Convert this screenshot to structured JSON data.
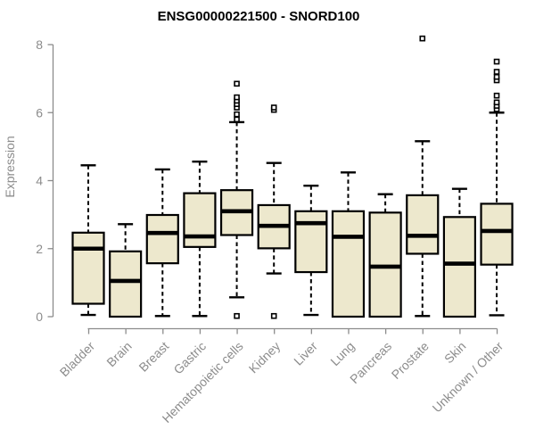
{
  "chart_data": {
    "type": "boxplot",
    "title": "ENSG00000221500 - SNORD100",
    "xlabel": "",
    "ylabel": "Expression",
    "ylim": [
      0,
      8
    ],
    "yticks": [
      0,
      2,
      4,
      6,
      8
    ],
    "grid": false,
    "legend": "none",
    "box_fill_color": "#EDE8CD",
    "box_stroke_color": "#000000",
    "axis_color": "#8C8C8C",
    "categories": [
      "Bladder",
      "Brain",
      "Breast",
      "Gastric",
      "Hematopoietic cells",
      "Kidney",
      "Liver",
      "Lung",
      "Pancreas",
      "Prostate",
      "Skin",
      "Unknown / Other"
    ],
    "series": [
      {
        "category": "Bladder",
        "whisker_low": 0.05,
        "q1": 0.38,
        "median": 2.0,
        "q3": 2.47,
        "whisker_high": 4.45,
        "outliers": []
      },
      {
        "category": "Brain",
        "whisker_low": 0.0,
        "q1": 0.0,
        "median": 1.05,
        "q3": 1.92,
        "whisker_high": 2.72,
        "outliers": []
      },
      {
        "category": "Breast",
        "whisker_low": 0.02,
        "q1": 1.57,
        "median": 2.46,
        "q3": 2.99,
        "whisker_high": 4.33,
        "outliers": []
      },
      {
        "category": "Gastric",
        "whisker_low": 0.02,
        "q1": 2.05,
        "median": 2.36,
        "q3": 3.63,
        "whisker_high": 4.56,
        "outliers": []
      },
      {
        "category": "Hematopoietic cells",
        "whisker_low": 0.57,
        "q1": 2.4,
        "median": 3.1,
        "q3": 3.72,
        "whisker_high": 5.72,
        "outliers": [
          0.02,
          5.8,
          5.95,
          6.15,
          6.25,
          6.35,
          6.45,
          6.85
        ]
      },
      {
        "category": "Kidney",
        "whisker_low": 1.27,
        "q1": 2.01,
        "median": 2.67,
        "q3": 3.28,
        "whisker_high": 4.52,
        "outliers": [
          0.02,
          6.08,
          6.15
        ]
      },
      {
        "category": "Liver",
        "whisker_low": 0.05,
        "q1": 1.31,
        "median": 2.75,
        "q3": 3.1,
        "whisker_high": 3.85,
        "outliers": []
      },
      {
        "category": "Lung",
        "whisker_low": 0.0,
        "q1": 0.0,
        "median": 2.35,
        "q3": 3.1,
        "whisker_high": 4.24,
        "outliers": []
      },
      {
        "category": "Pancreas",
        "whisker_low": 0.0,
        "q1": 0.0,
        "median": 1.47,
        "q3": 3.06,
        "whisker_high": 3.6,
        "outliers": []
      },
      {
        "category": "Prostate",
        "whisker_low": 0.02,
        "q1": 1.85,
        "median": 2.38,
        "q3": 3.57,
        "whisker_high": 5.16,
        "outliers": [
          8.18
        ]
      },
      {
        "category": "Skin",
        "whisker_low": 0.0,
        "q1": 0.0,
        "median": 1.56,
        "q3": 2.93,
        "whisker_high": 3.76,
        "outliers": []
      },
      {
        "category": "Unknown / Other",
        "whisker_low": 0.04,
        "q1": 1.53,
        "median": 2.52,
        "q3": 3.32,
        "whisker_high": 6.0,
        "outliers": [
          6.1,
          6.2,
          6.3,
          6.5,
          6.95,
          7.05,
          7.2,
          7.5
        ]
      }
    ]
  }
}
